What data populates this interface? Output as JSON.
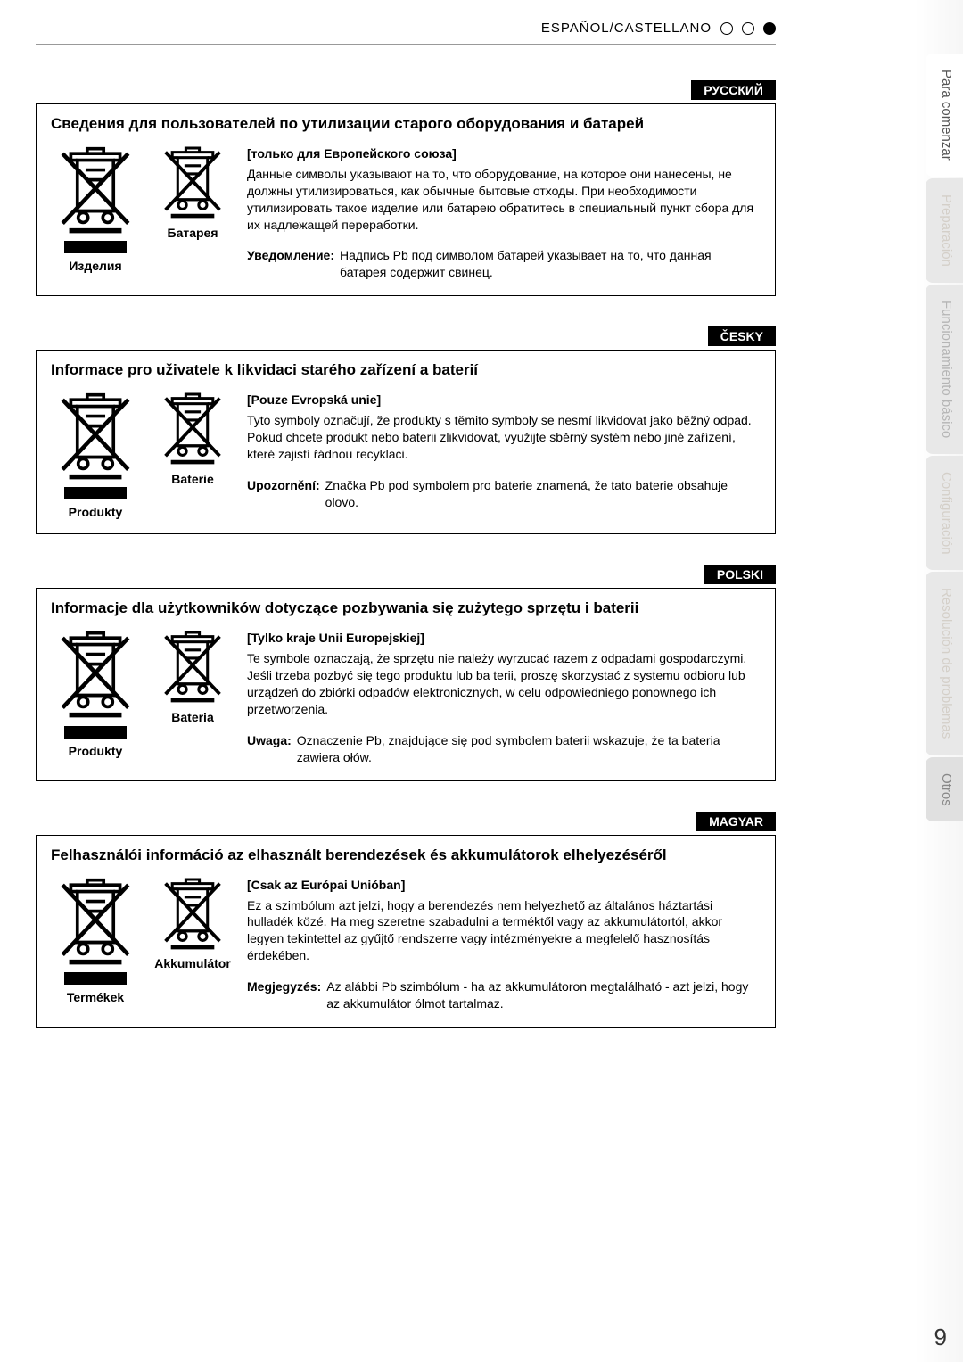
{
  "header": {
    "language": "ESPAÑOL/CASTELLANO"
  },
  "page_number": "9",
  "side_tabs": [
    {
      "label": "Para comenzar",
      "cls": "active"
    },
    {
      "label": "Preparación",
      "cls": "dim"
    },
    {
      "label": "Funcionamiento básico",
      "cls": "mid"
    },
    {
      "label": "Configuración",
      "cls": "dim"
    },
    {
      "label": "Resolución de problemas",
      "cls": "dim"
    },
    {
      "label": "Otros",
      "cls": "on"
    }
  ],
  "sections": [
    {
      "lang_pill": "РУССКИЙ",
      "title": "Сведения для пользователей по утилизации старого оборудования и батарей",
      "product_label": "Изделия",
      "battery_label": "Батарея",
      "subhead": "[только для Европейского союза]",
      "paragraph": "Данные символы указывают на то, что оборудование, на которое они нанесены, не должны утилизироваться, как обычные бытовые отходы. При необходимости утилизировать такое изделие или батарею обратитесь в специальный пункт сбора для их надлежащей переработки.",
      "notice_label": "Уведомление:",
      "notice_text": "Надпись Pb под символом батарей указывает на то, что данная батарея содержит свинец."
    },
    {
      "lang_pill": "ČESKY",
      "title": "Informace pro uživatele k likvidaci starého zařízení a baterií",
      "product_label": "Produkty",
      "battery_label": "Baterie",
      "subhead": "[Pouze Evropská unie]",
      "paragraph": "Tyto symboly označují, že produkty s těmito symboly se nesmí likvidovat jako běžný odpad. Pokud chcete produkt nebo baterii zlikvidovat, využijte sběrný systém nebo jiné zařízení, které zajistí řádnou recyklaci.",
      "notice_label": "Upozornění:",
      "notice_text": "Značka Pb pod symbolem pro baterie znamená, že tato baterie obsahuje olovo."
    },
    {
      "lang_pill": "POLSKI",
      "title": "Informacje dla użytkowników dotyczące pozbywania się zużytego sprzętu i baterii",
      "product_label": "Produkty",
      "battery_label": "Bateria",
      "subhead": "[Tylko kraje Unii Europejskiej]",
      "paragraph": "Te symbole oznaczają, że sprzętu nie należy wyrzucać razem z odpadami gospodarczymi. Jeśli trzeba pozbyć się tego produktu lub ba terii, proszę skorzystać z systemu odbioru lub urządzeń do zbiórki odpadów elektronicznych, w celu odpowiedniego ponownego ich przetworzenia.",
      "notice_label": "Uwaga:",
      "notice_text": "Oznaczenie Pb, znajdujące się pod symbolem baterii wskazuje, że ta bateria zawiera ołów."
    },
    {
      "lang_pill": "MAGYAR",
      "title": "Felhasználói információ az elhasznált berendezések és akkumulátorok elhelyezéséről",
      "product_label": "Termékek",
      "battery_label": "Akkumulátor",
      "subhead": "[Csak az Európai Unióban]",
      "paragraph": "Ez a szimbólum azt jelzi, hogy a berendezés nem helyezhető az általános háztartási hulladék közé. Ha meg szeretne szabadulni a terméktől vagy az akkumulátortól, akkor legyen tekintettel az gyűjtő rendszerre vagy intézményekre a megfelelő hasznosítás érdekében.",
      "notice_label": "Megjegyzés:",
      "notice_text": "Az alábbi Pb szimbólum - ha az akkumulátoron megtalálható - azt jelzi, hogy az akkumulátor ólmot tartalmaz."
    }
  ],
  "colors": {
    "text": "#000000",
    "bg": "#ffffff",
    "tab_bg": "#e8e8e8"
  }
}
